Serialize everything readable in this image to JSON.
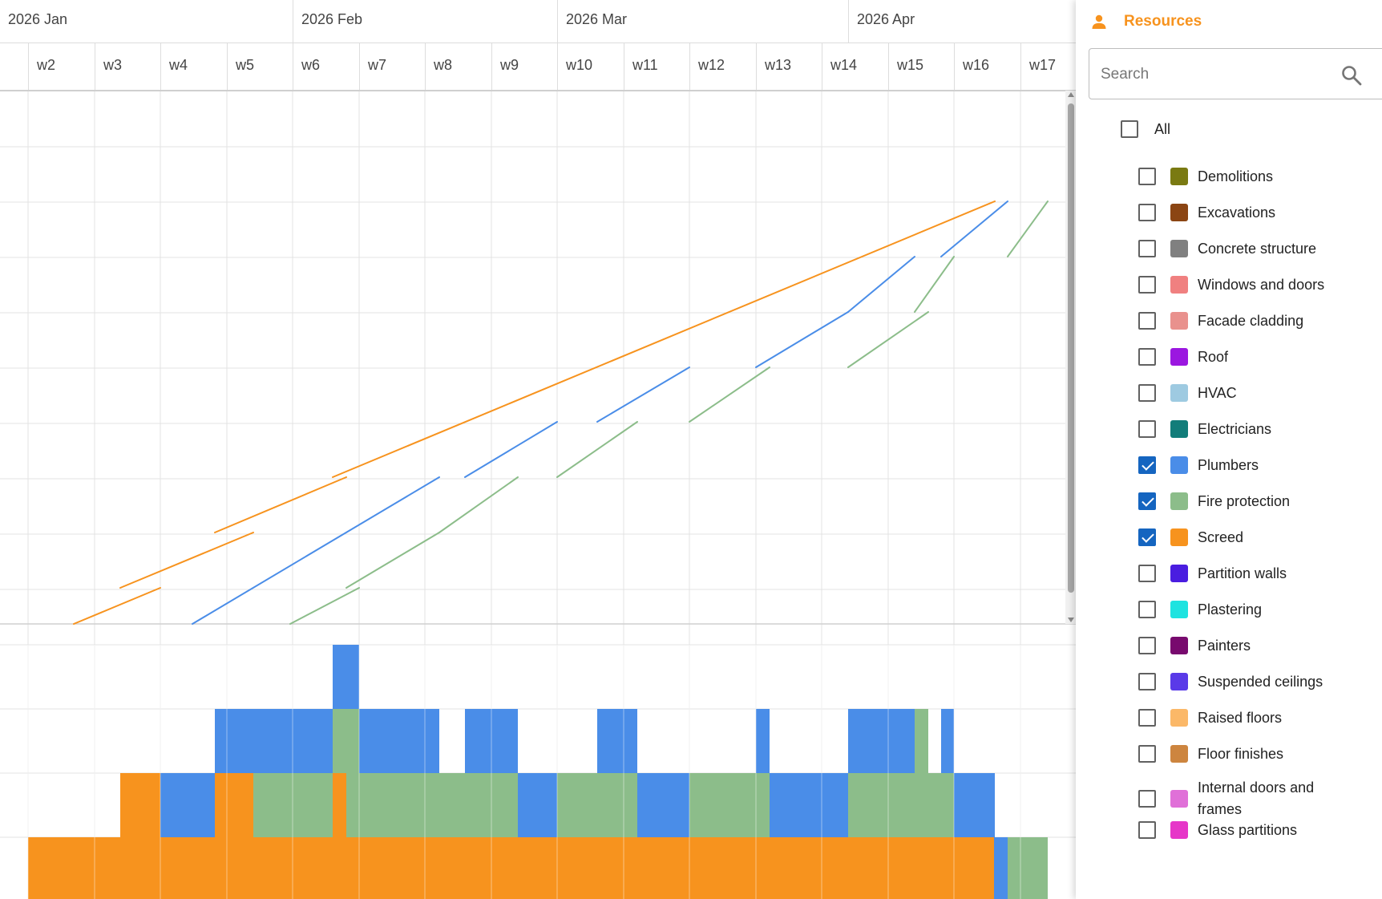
{
  "timeline": {
    "months": [
      {
        "label": "2026 Jan"
      },
      {
        "label": "2026 Feb"
      },
      {
        "label": "2026 Mar"
      },
      {
        "label": "2026 Apr"
      }
    ],
    "weeks": [
      "w2",
      "w3",
      "w4",
      "w5",
      "w6",
      "w7",
      "w8",
      "w9",
      "w10",
      "w11",
      "w12",
      "w13",
      "w14",
      "w15",
      "w16",
      "w17"
    ]
  },
  "colors": {
    "plumbers": "#4a8de8",
    "fire_protection": "#8cbd8a",
    "screed": "#f7931e",
    "grid": "#e3e3e3",
    "accent": "#f7931e"
  },
  "panel": {
    "title": "Resources",
    "title_icon": "person-icon",
    "search": {
      "placeholder": "Search",
      "value": "",
      "icon": "search-icon"
    },
    "all_label": "All",
    "all_checked": false,
    "resources": [
      {
        "label": "Demolitions",
        "color": "#7a7a12",
        "checked": false
      },
      {
        "label": "Excavations",
        "color": "#8b4513",
        "checked": false
      },
      {
        "label": "Concrete structure",
        "color": "#808080",
        "checked": false
      },
      {
        "label": "Windows and doors",
        "color": "#f08080",
        "checked": false
      },
      {
        "label": "Facade cladding",
        "color": "#e9918d",
        "checked": false
      },
      {
        "label": "Roof",
        "color": "#9b17e0",
        "checked": false
      },
      {
        "label": "HVAC",
        "color": "#9ecae1",
        "checked": false
      },
      {
        "label": "Electricians",
        "color": "#127d7a",
        "checked": false
      },
      {
        "label": "Plumbers",
        "color": "#4a8de8",
        "checked": true
      },
      {
        "label": "Fire protection",
        "color": "#8cbd8a",
        "checked": true
      },
      {
        "label": "Screed",
        "color": "#f7931e",
        "checked": true
      },
      {
        "label": "Partition walls",
        "color": "#4a1de0",
        "checked": false
      },
      {
        "label": "Plastering",
        "color": "#1ee3e0",
        "checked": false
      },
      {
        "label": "Painters",
        "color": "#780a6e",
        "checked": false
      },
      {
        "label": "Suspended ceilings",
        "color": "#5a3ae8",
        "checked": false
      },
      {
        "label": "Raised floors",
        "color": "#fbb868",
        "checked": false
      },
      {
        "label": "Floor finishes",
        "color": "#cd853f",
        "checked": false
      },
      {
        "label": "Internal doors and frames",
        "color": "#e070d8",
        "checked": false
      },
      {
        "label": "Glass partitions",
        "color": "#e636c8",
        "checked": false
      }
    ]
  }
}
